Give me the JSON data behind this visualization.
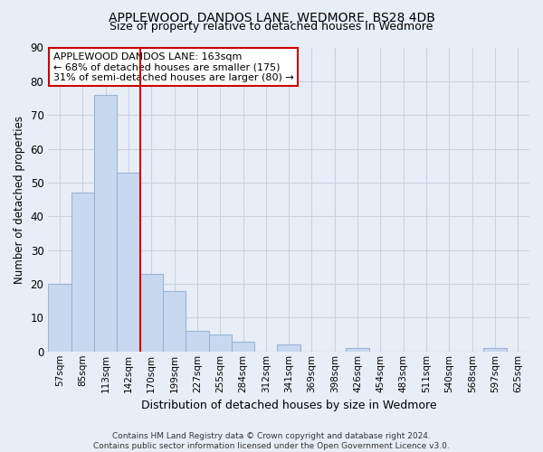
{
  "title": "APPLEWOOD, DANDOS LANE, WEDMORE, BS28 4DB",
  "subtitle": "Size of property relative to detached houses in Wedmore",
  "xlabel": "Distribution of detached houses by size in Wedmore",
  "ylabel": "Number of detached properties",
  "bar_labels": [
    "57sqm",
    "85sqm",
    "113sqm",
    "142sqm",
    "170sqm",
    "199sqm",
    "227sqm",
    "255sqm",
    "284sqm",
    "312sqm",
    "341sqm",
    "369sqm",
    "398sqm",
    "426sqm",
    "454sqm",
    "483sqm",
    "511sqm",
    "540sqm",
    "568sqm",
    "597sqm",
    "625sqm"
  ],
  "bar_values": [
    20,
    47,
    76,
    53,
    23,
    18,
    6,
    5,
    3,
    0,
    2,
    0,
    0,
    1,
    0,
    0,
    0,
    0,
    0,
    1,
    0
  ],
  "bar_color": "#c8d8ee",
  "bar_edge_color": "#9ab4d4",
  "grid_color": "#c8d4e4",
  "background_color": "#e8eef8",
  "vline_color": "#cc0000",
  "annotation_text": "APPLEWOOD DANDOS LANE: 163sqm\n← 68% of detached houses are smaller (175)\n31% of semi-detached houses are larger (80) →",
  "annotation_box_color": "#ffffff",
  "annotation_box_edge": "#cc0000",
  "ylim": [
    0,
    90
  ],
  "footnote": "Contains HM Land Registry data © Crown copyright and database right 2024.\nContains public sector information licensed under the Open Government Licence v3.0."
}
